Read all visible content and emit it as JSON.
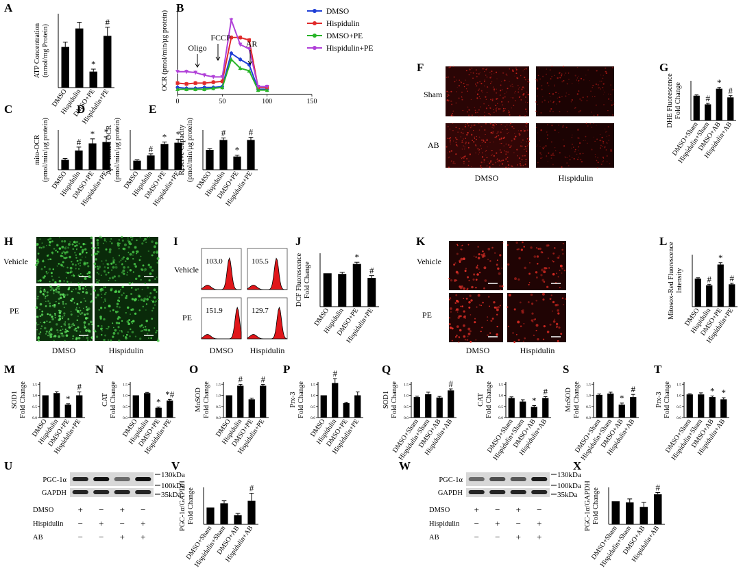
{
  "panel_letters": [
    "A",
    "B",
    "C",
    "D",
    "E",
    "F",
    "G",
    "H",
    "I",
    "J",
    "K",
    "L",
    "M",
    "N",
    "O",
    "P",
    "Q",
    "R",
    "S",
    "T",
    "U",
    "V",
    "W",
    "X"
  ],
  "legend_B": [
    {
      "name": "DMSO",
      "color": "#1f3fd6"
    },
    {
      "name": "Hispidulin",
      "color": "#e02a2a"
    },
    {
      "name": "DMSO+PE",
      "color": "#28b428"
    },
    {
      "name": "Hispidulin+PE",
      "color": "#b040d8"
    }
  ],
  "annotations_B": [
    "Oligo",
    "FCCP",
    "AR"
  ],
  "micro_F": {
    "rows": [
      "Sham",
      "AB"
    ],
    "cols": [
      "DMSO",
      "Hispidulin"
    ]
  },
  "micro_H": {
    "rows": [
      "Vehicle",
      "PE"
    ],
    "cols": [
      "DMSO",
      "Hispidulin"
    ]
  },
  "micro_K": {
    "rows": [
      "Vehicle",
      "PE"
    ],
    "cols": [
      "DMSO",
      "Hispidulin"
    ]
  },
  "flow_I": {
    "rows": [
      "Vehicle",
      "PE"
    ],
    "cols": [
      "DMSO",
      "Hispidulin"
    ],
    "values": [
      "103.0",
      "105.5",
      "151.9",
      "129.7"
    ]
  },
  "western": [
    {
      "id": "U",
      "bands": [
        "PGC-1α",
        "GAPDH"
      ],
      "markers": [
        "130kDa",
        "100kDa",
        "35kDa"
      ],
      "rows": [
        {
          "label": "DMSO",
          "signs": [
            "+",
            "−",
            "+",
            "−"
          ]
        },
        {
          "label": "Hispidulin",
          "signs": [
            "−",
            "+",
            "−",
            "+"
          ]
        },
        {
          "label": "AB",
          "signs": [
            "−",
            "−",
            "+",
            "+"
          ]
        }
      ]
    },
    {
      "id": "W",
      "bands": [
        "PGC-1α",
        "GAPDH"
      ],
      "markers": [
        "130kDa",
        "100kDa",
        "35kDa"
      ],
      "rows": [
        {
          "label": "DMSO",
          "signs": [
            "+",
            "−",
            "+",
            "−"
          ]
        },
        {
          "label": "Hispidulin",
          "signs": [
            "−",
            "+",
            "−",
            "+"
          ]
        },
        {
          "label": "AB",
          "signs": [
            "−",
            "−",
            "+",
            "+"
          ]
        }
      ]
    }
  ],
  "chart_data": [
    {
      "id": "A",
      "type": "bar",
      "ylabel": "ATP Concentration\n(nmol/mg Protein)",
      "categories": [
        "DMSO",
        "Hispidulin",
        "DMSO+PE",
        "Hispidulin+PE"
      ],
      "values": [
        0.33,
        0.48,
        0.13,
        0.42
      ],
      "errors": [
        0.04,
        0.05,
        0.02,
        0.07
      ],
      "marks": [
        "",
        "",
        "*",
        "#"
      ],
      "ylim": [
        0,
        0.6
      ]
    },
    {
      "id": "B",
      "type": "line",
      "ylabel": "OCR (pmol/min/μg protein)",
      "x": [
        0,
        10,
        20,
        30,
        40,
        50,
        60,
        70,
        80,
        90,
        100
      ],
      "xticks": [
        0,
        50,
        100,
        150
      ],
      "xlim": [
        0,
        150
      ],
      "ylim": [
        0,
        100
      ],
      "series": [
        {
          "name": "DMSO",
          "values": [
            8,
            7,
            7,
            8,
            8,
            9,
            47,
            40,
            34,
            6,
            6
          ]
        },
        {
          "name": "Hispidulin",
          "values": [
            13,
            12,
            13,
            13,
            14,
            15,
            65,
            65,
            62,
            8,
            8
          ]
        },
        {
          "name": "DMSO+PE",
          "values": [
            6,
            6,
            6,
            6,
            7,
            8,
            40,
            30,
            27,
            5,
            5
          ]
        },
        {
          "name": "Hispidulin+PE",
          "values": [
            26,
            26,
            25,
            22,
            20,
            20,
            85,
            57,
            52,
            9,
            9
          ]
        }
      ]
    },
    {
      "id": "C",
      "type": "bar",
      "ylabel": "mito-OCR\n(pmol/min/μg protein)",
      "categories": [
        "DMSO",
        "Hispidulin",
        "DMSO+PE",
        "Hispidulin+PE"
      ],
      "values": [
        3.5,
        6.8,
        9.3,
        9.8
      ],
      "errors": [
        0.5,
        1.2,
        1.6,
        1.8
      ],
      "marks": [
        "",
        "#",
        "*",
        "*"
      ],
      "ylim": [
        0,
        14
      ]
    },
    {
      "id": "D",
      "type": "bar",
      "ylabel": "ATP-linked OCR\n(pmol/min/μg protein)",
      "categories": [
        "DMSO",
        "Hispidulin",
        "DMSO+PE",
        "Hispidulin+PE"
      ],
      "values": [
        2.3,
        3.6,
        6.5,
        6.8
      ],
      "errors": [
        0.2,
        0.4,
        0.5,
        0.9
      ],
      "marks": [
        "",
        "#",
        "*",
        "*"
      ],
      "ylim": [
        0,
        10
      ]
    },
    {
      "id": "E",
      "type": "bar",
      "ylabel": "Reserve Capacity\n(pmol/min/μg protein)",
      "categories": [
        "DMSO",
        "Hispidulin",
        "DMSO+PE",
        "Hispidulin+PE"
      ],
      "values": [
        30,
        45,
        20,
        45
      ],
      "errors": [
        2,
        3,
        2,
        4
      ],
      "marks": [
        "",
        "#",
        "*",
        "#"
      ],
      "ylim": [
        0,
        60
      ]
    },
    {
      "id": "G",
      "type": "bar",
      "ylabel": "DHE Fluorescence\nFold Change",
      "categories": [
        "DMSO+Sham",
        "Hispidulin+Sham",
        "DMSO+AB",
        "Hispidulin+AB"
      ],
      "values": [
        1.0,
        0.65,
        1.28,
        0.93
      ],
      "errors": [
        0.03,
        0.04,
        0.05,
        0.07
      ],
      "marks": [
        "",
        "#",
        "*",
        "#"
      ],
      "ylim": [
        0,
        1.6
      ]
    },
    {
      "id": "J",
      "type": "bar",
      "ylabel": "DCF Fluorescence\nFold Change",
      "categories": [
        "DMSO",
        "Hispidulin",
        "DMSO+PE",
        "Hispidulin+PE"
      ],
      "values": [
        1.0,
        0.98,
        1.28,
        0.86
      ],
      "errors": [
        0.0,
        0.05,
        0.05,
        0.07
      ],
      "marks": [
        "",
        "",
        "*",
        "#"
      ],
      "ylim": [
        0,
        1.6
      ]
    },
    {
      "id": "L",
      "type": "bar",
      "ylabel": "Mitosox-Red Fluorescence\nIntensity",
      "categories": [
        "DMSO",
        "Hispidulin",
        "DMSO+PE",
        "Hispidulin+PE"
      ],
      "values": [
        5.4,
        4.1,
        8.1,
        4.3
      ],
      "errors": [
        0.15,
        0.2,
        0.35,
        0.2
      ],
      "marks": [
        "",
        "#",
        "*",
        "#"
      ],
      "ylim": [
        0,
        10
      ]
    },
    {
      "id": "M",
      "type": "bar",
      "ylabel": "SOD1\nFold Change",
      "yticks": [
        "0.0",
        "0.5",
        "1.0",
        "1.5"
      ],
      "categories": [
        "DMSO",
        "Hispidulin",
        "DMSO+PE",
        "Hispidulin+PE"
      ],
      "values": [
        1.0,
        1.1,
        0.58,
        1.0
      ],
      "errors": [
        0.0,
        0.06,
        0.04,
        0.15
      ],
      "marks": [
        "",
        "",
        "*",
        "#"
      ],
      "ylim": [
        0,
        1.6
      ]
    },
    {
      "id": "N",
      "type": "bar",
      "ylabel": "CAT\nFold Change",
      "yticks": [
        "0.0",
        "0.5",
        "1.0",
        "1.5"
      ],
      "categories": [
        "DMSO",
        "Hispidulin",
        "DMSO+PE",
        "Hispidulin+PE"
      ],
      "values": [
        1.0,
        1.1,
        0.44,
        0.76
      ],
      "errors": [
        0.0,
        0.03,
        0.03,
        0.06
      ],
      "marks": [
        "",
        "",
        "*",
        "*#"
      ],
      "ylim": [
        0,
        1.6
      ]
    },
    {
      "id": "O",
      "type": "bar",
      "ylabel": "MnSOD\nFold Change",
      "yticks": [
        "0.0",
        "0.5",
        "1.0",
        "1.5"
      ],
      "categories": [
        "DMSO",
        "Hispidulin",
        "DMSO+PE",
        "Hispidulin+PE"
      ],
      "values": [
        1.0,
        1.43,
        0.82,
        1.43
      ],
      "errors": [
        0.0,
        0.06,
        0.05,
        0.06
      ],
      "marks": [
        "",
        "#",
        "",
        "#"
      ],
      "ylim": [
        0,
        1.6
      ]
    },
    {
      "id": "P",
      "type": "bar",
      "ylabel": "Prx-3\nFold Change",
      "yticks": [
        "0.0",
        "0.5",
        "1.0",
        "1.5"
      ],
      "categories": [
        "DMSO",
        "Hispidulin",
        "DMSO+PE",
        "Hispidulin+PE"
      ],
      "values": [
        1.0,
        1.55,
        0.65,
        1.0
      ],
      "errors": [
        0.0,
        0.2,
        0.04,
        0.15
      ],
      "marks": [
        "",
        "#",
        "",
        ""
      ],
      "ylim": [
        0,
        1.6
      ]
    },
    {
      "id": "Q",
      "type": "bar",
      "ylabel": "SOD1\nFold Change",
      "yticks": [
        "0.0",
        "0.5",
        "1.0",
        "1.5"
      ],
      "categories": [
        "DMSO+Sham",
        "Hispidulin+Sham",
        "DMSO+AB",
        "Hispidulin+AB"
      ],
      "values": [
        0.92,
        1.05,
        0.9,
        1.22
      ],
      "errors": [
        0.04,
        0.09,
        0.05,
        0.07
      ],
      "marks": [
        "",
        "",
        "",
        "#"
      ],
      "ylim": [
        0,
        1.6
      ]
    },
    {
      "id": "R",
      "type": "bar",
      "ylabel": "CAT\nFold Change",
      "yticks": [
        "0.0",
        "0.5",
        "1.0",
        "1.5"
      ],
      "categories": [
        "DMSO+Sham",
        "Hispidulin+Sham",
        "DMSO+AB",
        "Hispidulin+AB"
      ],
      "values": [
        0.88,
        0.72,
        0.48,
        0.88
      ],
      "errors": [
        0.05,
        0.08,
        0.06,
        0.06
      ],
      "marks": [
        "",
        "",
        "*",
        "#"
      ],
      "ylim": [
        0,
        1.6
      ]
    },
    {
      "id": "S",
      "type": "bar",
      "ylabel": "MnSOD\nFold Change",
      "yticks": [
        "0.0",
        "0.5",
        "1.0",
        "1.5"
      ],
      "categories": [
        "DMSO+Sham",
        "Hispidulin+Sham",
        "DMSO+AB",
        "Hispidulin+AB"
      ],
      "values": [
        1.02,
        1.08,
        0.58,
        0.92
      ],
      "errors": [
        0.04,
        0.06,
        0.07,
        0.12
      ],
      "marks": [
        "",
        "",
        "*",
        "#"
      ],
      "ylim": [
        0,
        1.6
      ]
    },
    {
      "id": "T",
      "type": "bar",
      "ylabel": "Prx-3\nFold Change",
      "yticks": [
        "0.0",
        "0.5",
        "1.0",
        "1.5"
      ],
      "categories": [
        "DMSO+Sham",
        "Hispidulin+Sham",
        "DMSO+AB",
        "Hispidulin+AB"
      ],
      "values": [
        1.04,
        1.04,
        0.92,
        0.82
      ],
      "errors": [
        0.03,
        0.07,
        0.05,
        0.07
      ],
      "marks": [
        "",
        "",
        "*",
        "*"
      ],
      "ylim": [
        0,
        1.6
      ]
    },
    {
      "id": "V",
      "type": "bar",
      "ylabel": "PGC-1α/GAPDH\nFold Change",
      "categories": [
        "DMSO+Sham",
        "Hispidulin+Sham",
        "DMSO+AB",
        "Hispidulin+AB"
      ],
      "values": [
        1.0,
        1.25,
        0.55,
        1.4
      ],
      "errors": [
        0.0,
        0.15,
        0.1,
        0.45
      ],
      "marks": [
        "",
        "",
        "",
        "#"
      ],
      "ylim": [
        0,
        2.2
      ]
    },
    {
      "id": "X",
      "type": "bar",
      "ylabel": "PGC-1α/GAPDH\nFold Change",
      "categories": [
        "DMSO+Sham",
        "Hispidulin+Sham",
        "DMSO+AB",
        "Hispidulin+AB"
      ],
      "values": [
        1.0,
        0.95,
        0.75,
        1.3
      ],
      "errors": [
        0.0,
        0.15,
        0.2,
        0.08
      ],
      "marks": [
        "",
        "",
        "",
        "#"
      ],
      "ylim": [
        0,
        1.6
      ]
    }
  ]
}
